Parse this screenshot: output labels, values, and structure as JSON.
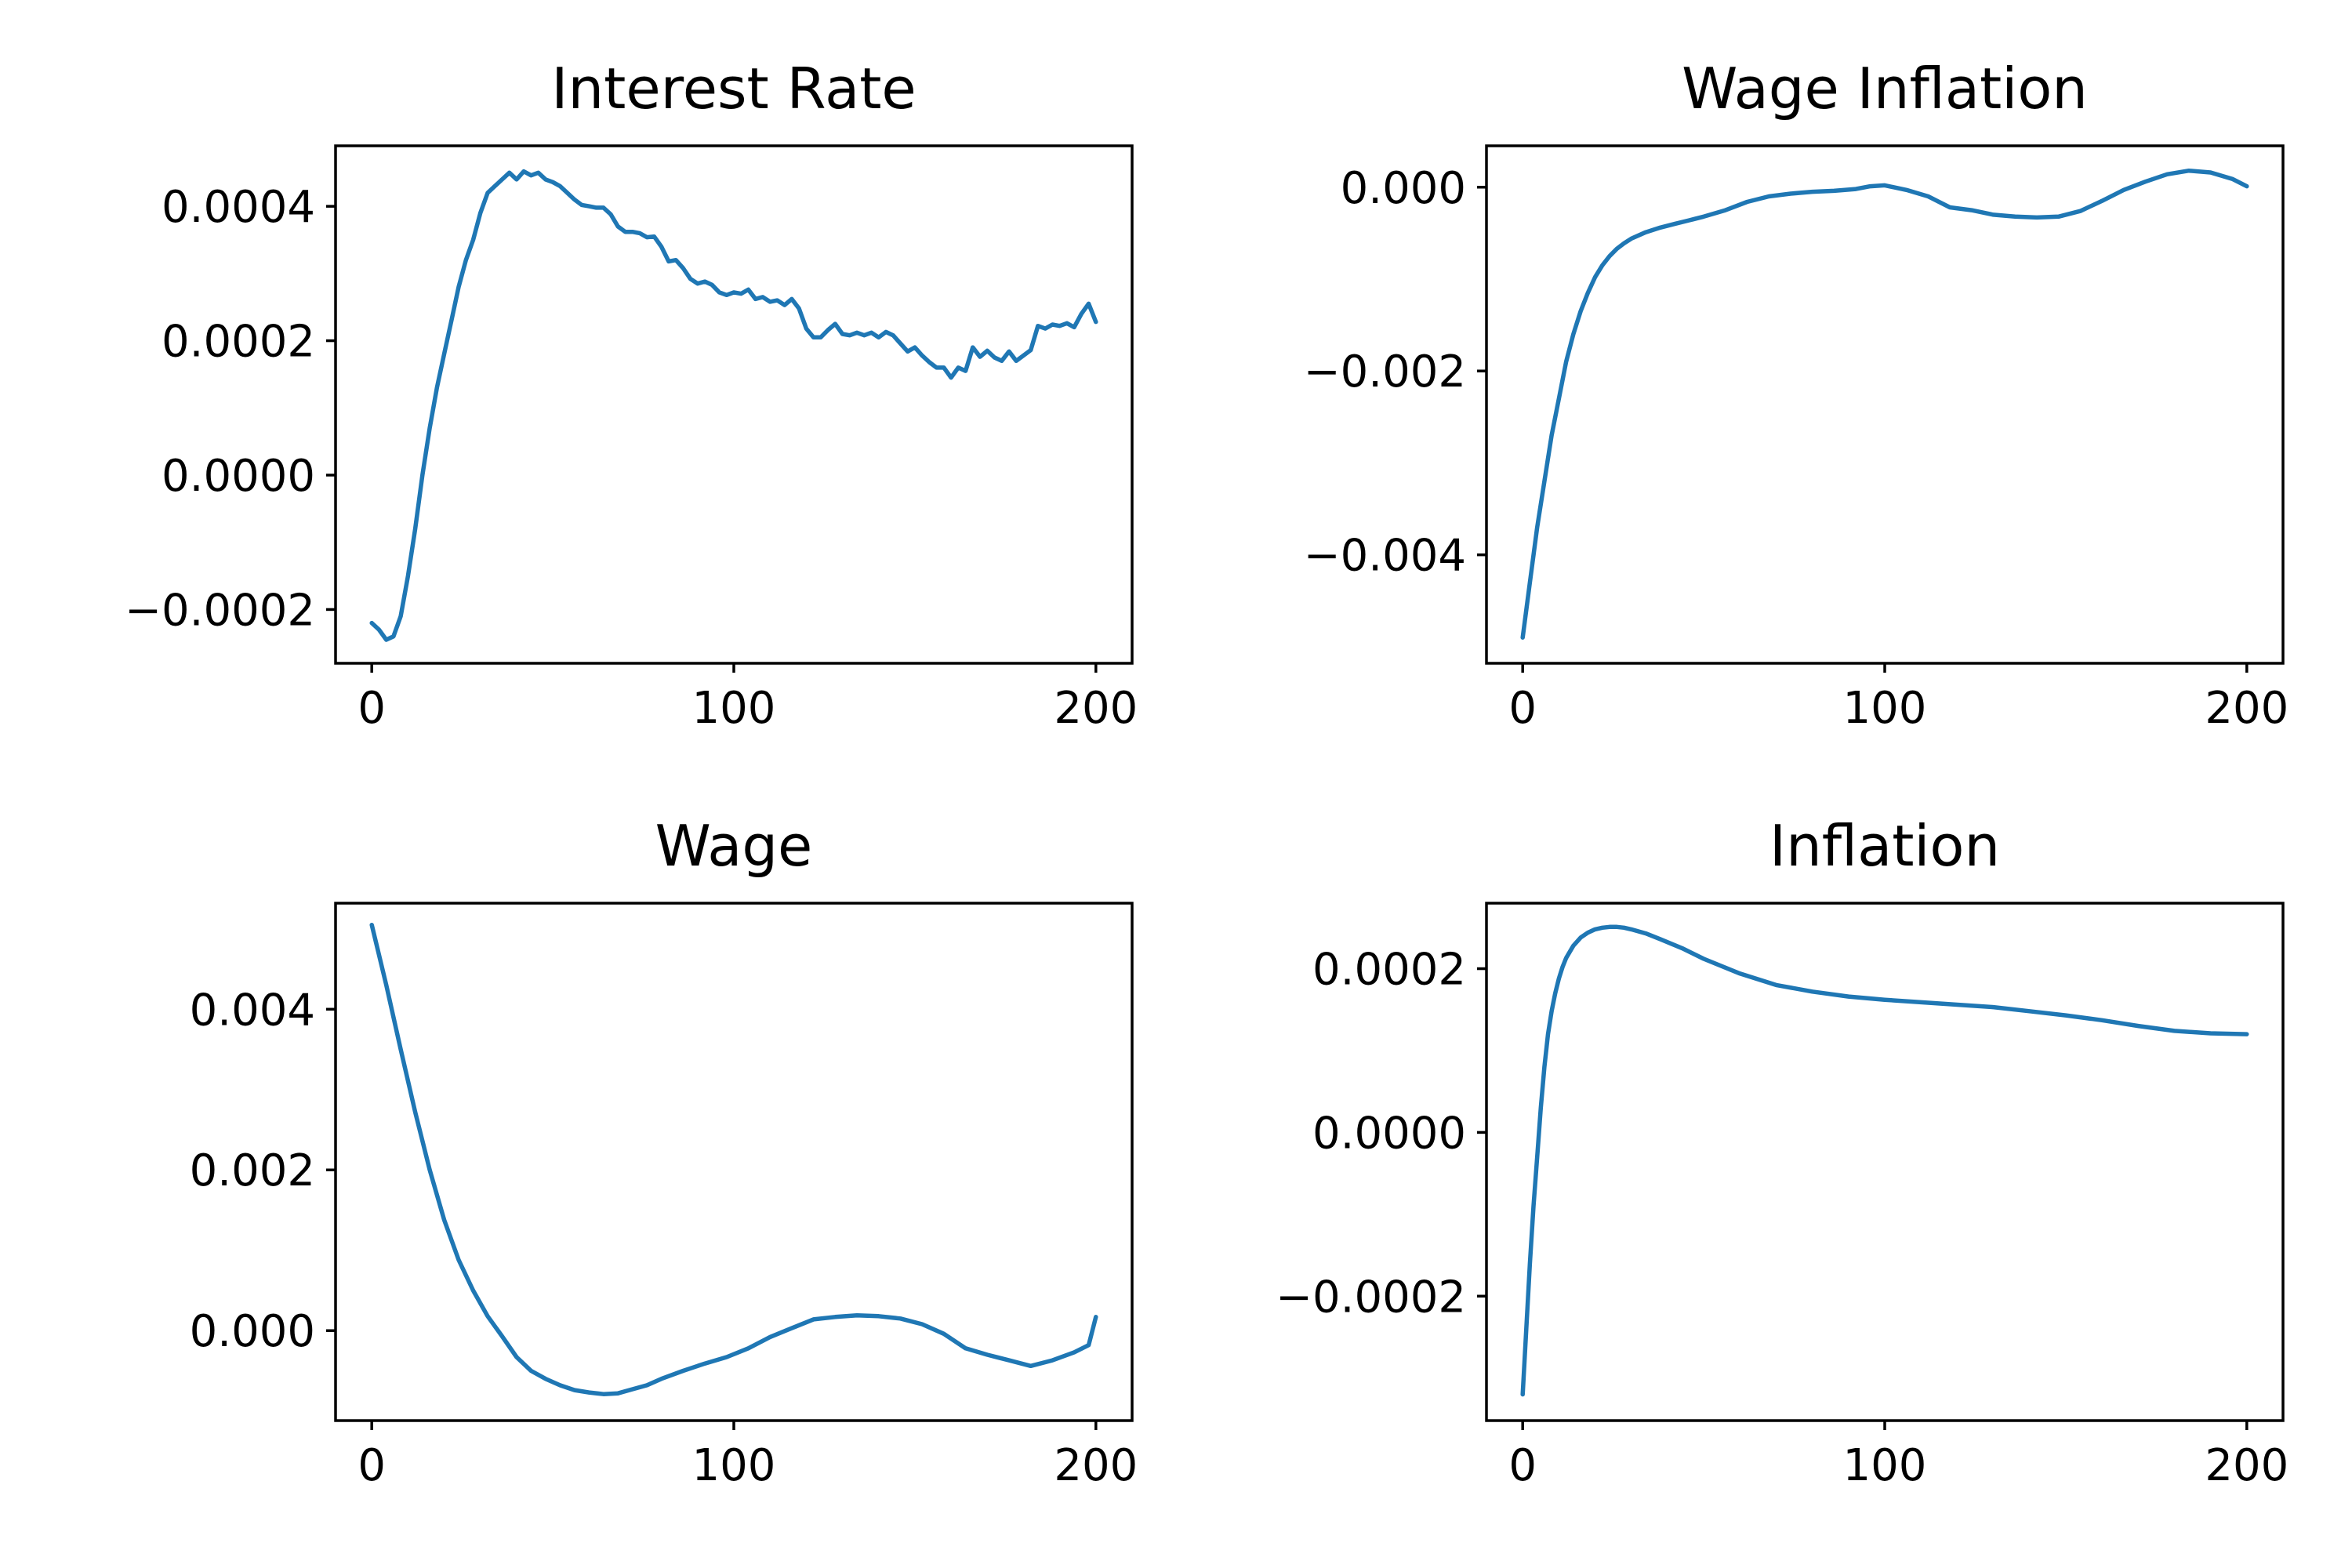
{
  "chart_data": [
    {
      "type": "line",
      "title": "Interest Rate",
      "xlabel": "",
      "ylabel": "",
      "xlim": [
        -10,
        210
      ],
      "ylim": [
        -0.00028,
        0.00049
      ],
      "xticks": [
        0,
        100,
        200
      ],
      "xtick_labels": [
        "0",
        "100",
        "200"
      ],
      "yticks": [
        -0.0002,
        0.0,
        0.0002,
        0.0004
      ],
      "ytick_labels": [
        "−0.0002",
        "0.0000",
        "0.0002",
        "0.0004"
      ],
      "color": "#1f77b4",
      "series": [
        {
          "x": [
            0,
            2,
            4,
            6,
            8,
            10,
            12,
            14,
            16,
            18,
            20,
            22,
            24,
            26,
            28,
            30,
            32,
            34,
            36,
            38,
            40,
            42,
            44,
            46,
            48,
            50,
            52,
            54,
            56,
            58,
            60,
            62,
            64,
            66,
            68,
            70,
            72,
            74,
            76,
            78,
            80,
            82,
            84,
            86,
            88,
            90,
            92,
            94,
            96,
            98,
            100,
            102,
            104,
            106,
            108,
            110,
            112,
            114,
            116,
            118,
            120,
            122,
            124,
            126,
            128,
            130,
            132,
            134,
            136,
            138,
            140,
            142,
            144,
            146,
            148,
            150,
            152,
            154,
            156,
            158,
            160,
            162,
            164,
            166,
            168,
            170,
            172,
            174,
            176,
            178,
            180,
            182,
            184,
            186,
            188,
            190,
            192,
            194,
            196,
            198,
            200
          ],
          "values": [
            -0.00022,
            -0.00023,
            -0.000245,
            -0.00024,
            -0.00021,
            -0.00015,
            -8e-05,
            0.0,
            7e-05,
            0.00013,
            0.00018,
            0.00023,
            0.00028,
            0.00032,
            0.00035,
            0.00039,
            0.00042,
            0.00043,
            0.00044,
            0.00045,
            0.00044,
            0.000452,
            0.000446,
            0.00045,
            0.00044,
            0.000436,
            0.00043,
            0.00042,
            0.00041,
            0.000402,
            0.0004,
            0.000398,
            0.000398,
            0.000388,
            0.00037,
            0.000362,
            0.000362,
            0.00036,
            0.000354,
            0.000355,
            0.00034,
            0.000318,
            0.00032,
            0.000308,
            0.000292,
            0.000285,
            0.000288,
            0.000283,
            0.000272,
            0.000268,
            0.000272,
            0.00027,
            0.000276,
            0.000262,
            0.000265,
            0.000258,
            0.00026,
            0.000253,
            0.000262,
            0.000248,
            0.000218,
            0.000205,
            0.000205,
            0.000216,
            0.000225,
            0.00021,
            0.000208,
            0.000212,
            0.000208,
            0.000212,
            0.000205,
            0.000213,
            0.000208,
            0.000196,
            0.000184,
            0.00019,
            0.000178,
            0.000168,
            0.00016,
            0.00016,
            0.000145,
            0.00016,
            0.000155,
            0.00019,
            0.000176,
            0.000185,
            0.000175,
            0.00017,
            0.000184,
            0.00017,
            0.000178,
            0.000186,
            0.000222,
            0.000218,
            0.000224,
            0.000222,
            0.000226,
            0.00022,
            0.00024,
            0.000255,
            0.000228
          ]
        }
      ]
    },
    {
      "type": "line",
      "title": "Wage Inflation",
      "xlabel": "",
      "ylabel": "",
      "xlim": [
        -10,
        210
      ],
      "ylim": [
        -0.00518,
        0.00045
      ],
      "xticks": [
        0,
        100,
        200
      ],
      "xtick_labels": [
        "0",
        "100",
        "200"
      ],
      "yticks": [
        -0.004,
        -0.002,
        0.0
      ],
      "ytick_labels": [
        "−0.004",
        "−0.002",
        "0.000"
      ],
      "color": "#1f77b4",
      "series": [
        {
          "x": [
            0,
            2,
            4,
            6,
            8,
            10,
            12,
            14,
            16,
            18,
            20,
            22,
            24,
            26,
            28,
            30,
            34,
            38,
            42,
            46,
            50,
            56,
            62,
            68,
            74,
            80,
            86,
            92,
            96,
            100,
            106,
            112,
            118,
            124,
            130,
            136,
            142,
            148,
            154,
            160,
            166,
            172,
            178,
            184,
            190,
            196,
            200
          ],
          "values": [
            -0.0049,
            -0.0043,
            -0.0037,
            -0.0032,
            -0.0027,
            -0.0023,
            -0.0019,
            -0.0016,
            -0.00135,
            -0.00115,
            -0.00098,
            -0.00085,
            -0.00075,
            -0.00067,
            -0.00061,
            -0.00056,
            -0.00049,
            -0.00044,
            -0.0004,
            -0.00036,
            -0.00032,
            -0.00025,
            -0.00016,
            -0.0001,
            -7e-05,
            -5e-05,
            -4e-05,
            -2e-05,
            1e-05,
            2e-05,
            -3e-05,
            -0.0001,
            -0.00022,
            -0.00025,
            -0.0003,
            -0.00032,
            -0.00033,
            -0.00032,
            -0.00026,
            -0.00015,
            -3e-05,
            6e-05,
            0.00014,
            0.00018,
            0.00016,
            9e-05,
            1e-05
          ]
        }
      ]
    },
    {
      "type": "line",
      "title": "Wage",
      "xlabel": "",
      "ylabel": "",
      "xlim": [
        -10,
        210
      ],
      "ylim": [
        -0.00112,
        0.00532
      ],
      "xticks": [
        0,
        100,
        200
      ],
      "xtick_labels": [
        "0",
        "100",
        "200"
      ],
      "yticks": [
        0.0,
        0.002,
        0.004
      ],
      "ytick_labels": [
        "0.000",
        "0.002",
        "0.004"
      ],
      "color": "#1f77b4",
      "series": [
        {
          "x": [
            0,
            4,
            8,
            12,
            16,
            20,
            24,
            28,
            32,
            36,
            40,
            44,
            48,
            52,
            56,
            60,
            64,
            68,
            72,
            76,
            80,
            86,
            92,
            98,
            104,
            110,
            116,
            122,
            128,
            134,
            140,
            146,
            152,
            158,
            164,
            170,
            176,
            182,
            188,
            194,
            198,
            200
          ],
          "values": [
            0.00505,
            0.0043,
            0.0035,
            0.00272,
            0.002,
            0.00138,
            0.00088,
            0.0005,
            0.00018,
            -7e-05,
            -0.00033,
            -0.0005,
            -0.0006,
            -0.00068,
            -0.00074,
            -0.00077,
            -0.00079,
            -0.00078,
            -0.00073,
            -0.00068,
            -0.0006,
            -0.0005,
            -0.00041,
            -0.00033,
            -0.00022,
            -8e-05,
            3e-05,
            0.00014,
            0.00017,
            0.00019,
            0.00018,
            0.00015,
            8e-05,
            -4e-05,
            -0.00022,
            -0.0003,
            -0.00037,
            -0.00044,
            -0.00037,
            -0.00027,
            -0.00018,
            0.00017
          ]
        }
      ]
    },
    {
      "type": "line",
      "title": "Inflation",
      "xlabel": "",
      "ylabel": "",
      "xlim": [
        -10,
        210
      ],
      "ylim": [
        -0.000352,
        0.00028
      ],
      "xticks": [
        0,
        100,
        200
      ],
      "xtick_labels": [
        "0",
        "100",
        "200"
      ],
      "yticks": [
        -0.0002,
        0.0,
        0.0002
      ],
      "ytick_labels": [
        "−0.0002",
        "0.0000",
        "0.0002"
      ],
      "color": "#1f77b4",
      "series": [
        {
          "x": [
            0,
            1,
            2,
            3,
            4,
            5,
            6,
            7,
            8,
            9,
            10,
            11,
            12,
            14,
            16,
            18,
            20,
            22,
            24,
            26,
            28,
            30,
            34,
            38,
            44,
            50,
            60,
            70,
            80,
            90,
            100,
            110,
            120,
            130,
            140,
            150,
            160,
            170,
            180,
            190,
            200
          ],
          "values": [
            -0.00032,
            -0.00024,
            -0.00016,
            -9e-05,
            -3e-05,
            3e-05,
            8e-05,
            0.00012,
            0.000148,
            0.00017,
            0.000188,
            0.000202,
            0.000213,
            0.000228,
            0.000238,
            0.000244,
            0.000248,
            0.00025,
            0.000251,
            0.000251,
            0.00025,
            0.000248,
            0.000243,
            0.000236,
            0.000225,
            0.000212,
            0.000194,
            0.00018,
            0.000172,
            0.000166,
            0.000162,
            0.000159,
            0.000156,
            0.000153,
            0.000148,
            0.000143,
            0.000137,
            0.00013,
            0.000124,
            0.000121,
            0.00012
          ]
        }
      ]
    }
  ]
}
